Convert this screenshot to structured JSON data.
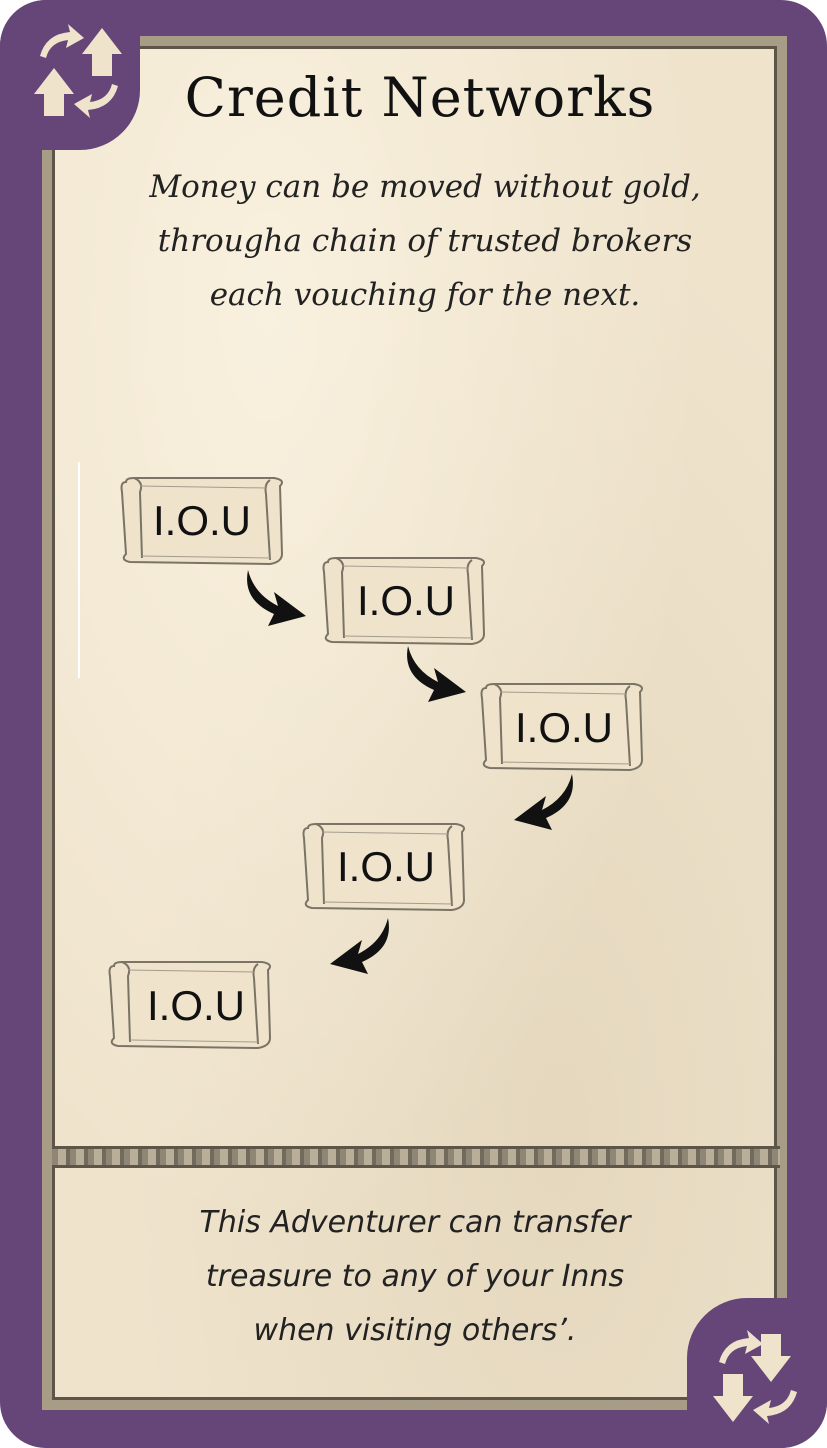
{
  "card": {
    "title": "Credit Networks",
    "flavor_lines": [
      "Money can be moved without gold,",
      "througha chain of trusted brokers",
      "each vouching for the next."
    ],
    "rules_lines": [
      "This Adventurer can transfer",
      "treasure to any of your Inns",
      "when visiting others’."
    ]
  },
  "diagram": {
    "scrolls": [
      {
        "label": "I.O.U"
      },
      {
        "label": "I.O.U"
      },
      {
        "label": "I.O.U"
      },
      {
        "label": "I.O.U"
      },
      {
        "label": "I.O.U"
      }
    ]
  },
  "icons": {
    "top_left": "swap-up-icon",
    "bottom_right": "swap-down-icon"
  },
  "colors": {
    "frame": "#664679",
    "parchment": "#efe3cc",
    "icon": "#efe3cc"
  }
}
